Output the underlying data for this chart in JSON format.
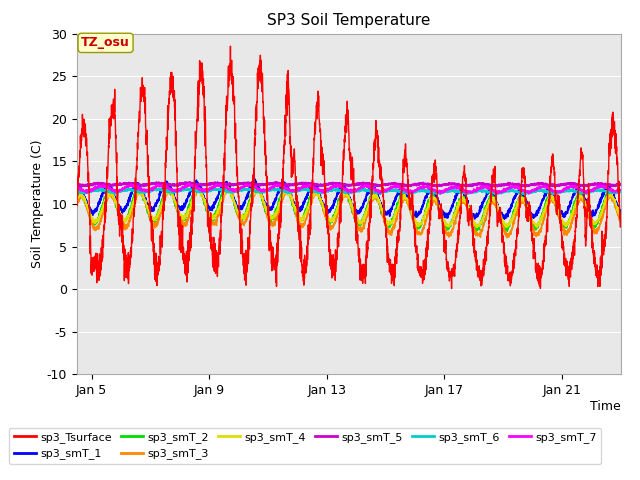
{
  "title": "SP3 Soil Temperature",
  "xlabel": "Time",
  "ylabel": "Soil Temperature (C)",
  "ylim": [
    -10,
    30
  ],
  "xlim_days": [
    4.5,
    23.0
  ],
  "background_color": "#e8e8e8",
  "fig_background": "#ffffff",
  "annotation_text": "TZ_osu",
  "annotation_color": "#cc0000",
  "annotation_bg": "#ffffcc",
  "series": {
    "sp3_Tsurface": {
      "color": "#ff0000",
      "lw": 1.0,
      "zorder": 5
    },
    "sp3_smT_1": {
      "color": "#0000ff",
      "lw": 1.2,
      "zorder": 4
    },
    "sp3_smT_2": {
      "color": "#00dd00",
      "lw": 1.2,
      "zorder": 4
    },
    "sp3_smT_3": {
      "color": "#ff8800",
      "lw": 1.2,
      "zorder": 4
    },
    "sp3_smT_4": {
      "color": "#dddd00",
      "lw": 1.2,
      "zorder": 4
    },
    "sp3_smT_5": {
      "color": "#cc00cc",
      "lw": 1.5,
      "zorder": 4
    },
    "sp3_smT_6": {
      "color": "#00cccc",
      "lw": 1.5,
      "zorder": 4
    },
    "sp3_smT_7": {
      "color": "#ff00ff",
      "lw": 1.2,
      "zorder": 4
    }
  },
  "xticks": [
    5,
    9,
    13,
    17,
    21
  ],
  "xtick_labels": [
    "Jan 5",
    "Jan 9",
    "Jan 13",
    "Jan 17",
    "Jan 21"
  ],
  "yticks": [
    -10,
    -5,
    0,
    5,
    10,
    15,
    20,
    25,
    30
  ],
  "seed": 42
}
